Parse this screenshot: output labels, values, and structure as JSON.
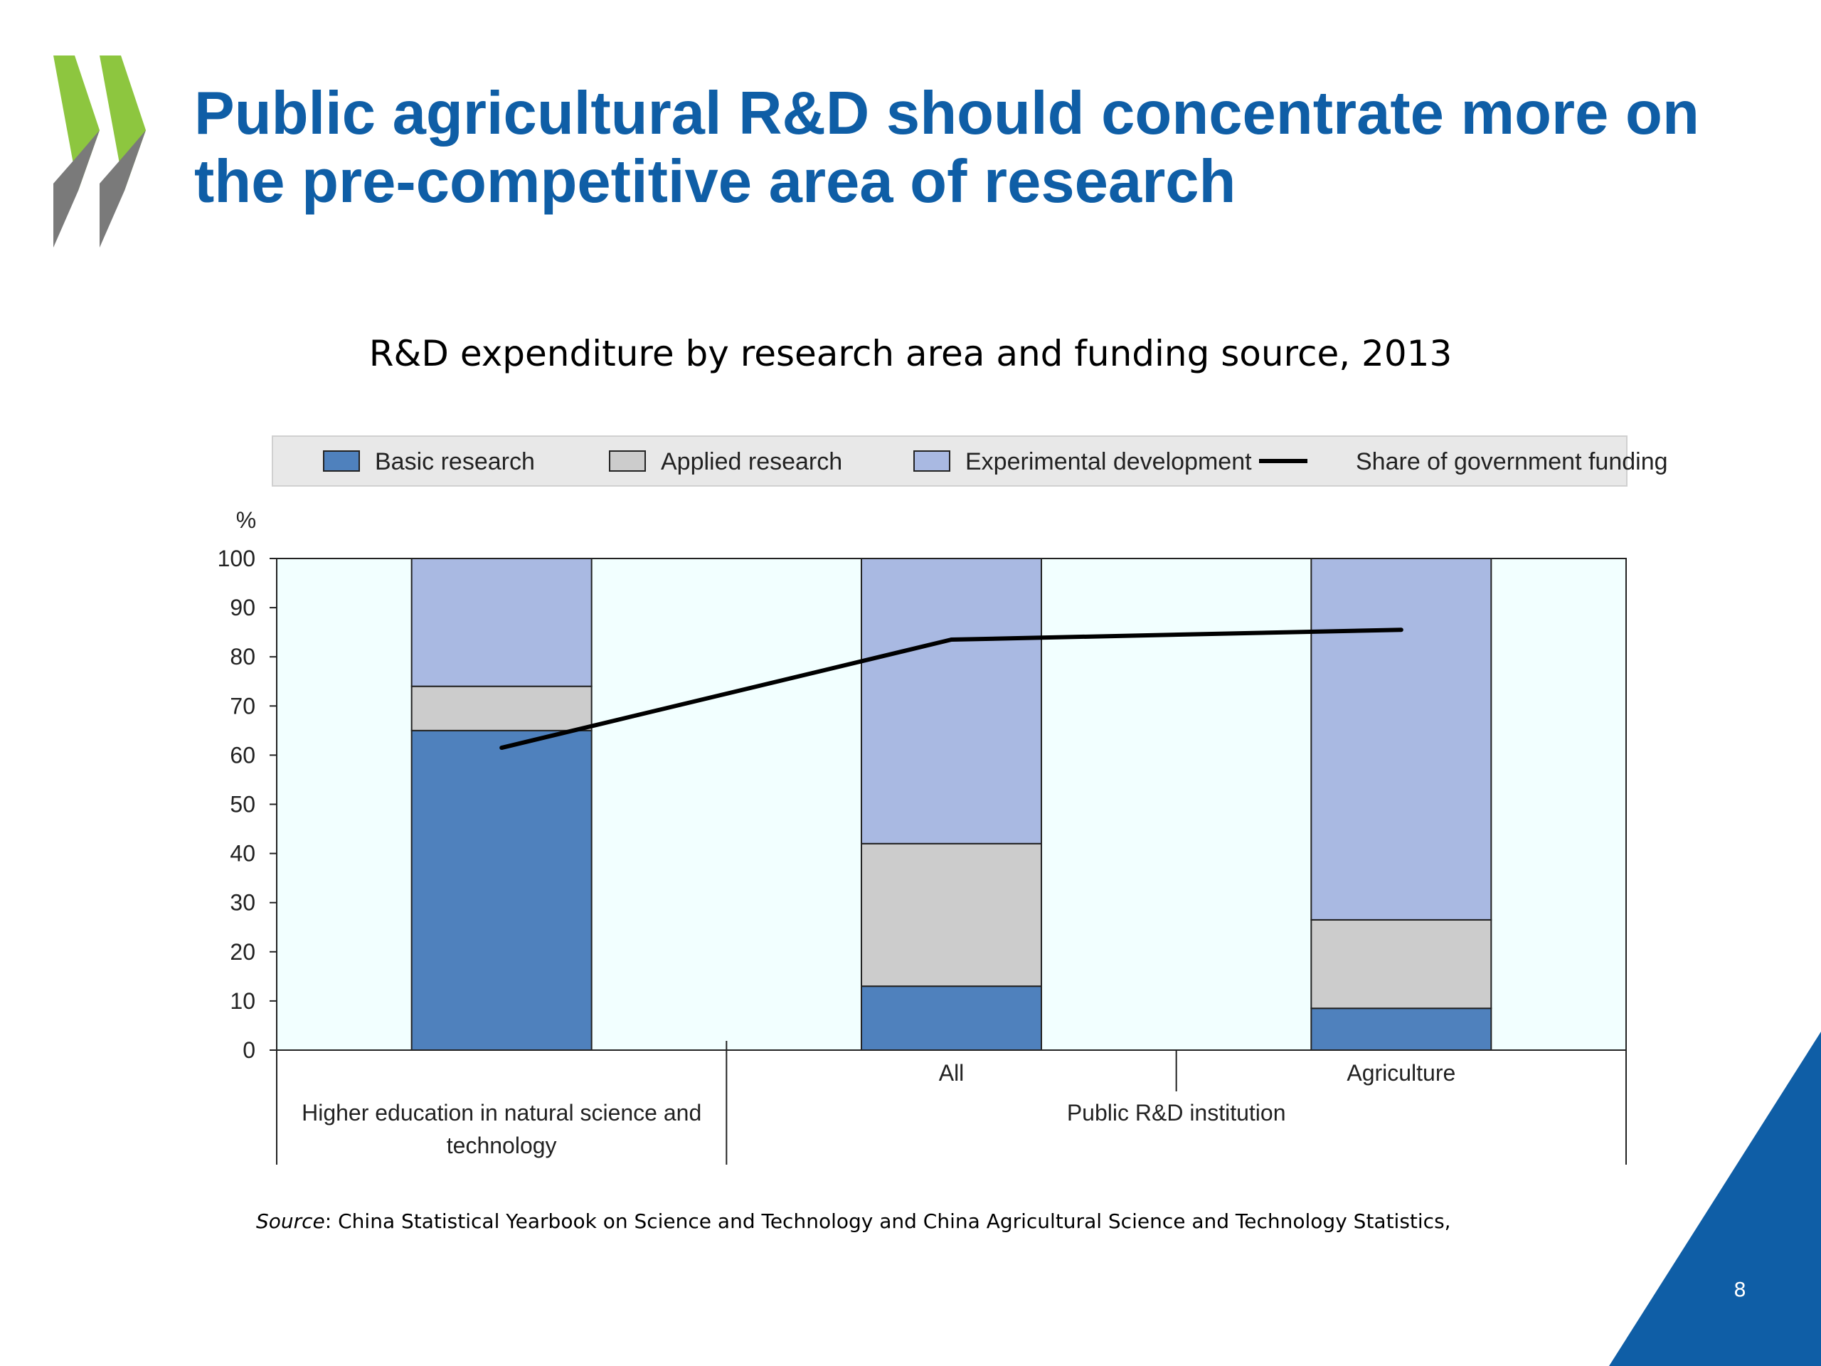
{
  "slide": {
    "title": "Public agricultural R&D should concentrate more on the pre-competitive area of research",
    "page_number": "8",
    "source_label": "Source",
    "source_text": ": China Statistical Yearbook on Science and Technology and China Agricultural Science and Technology Statistics,",
    "colors": {
      "title": "#0f5ea6",
      "corner": "#0f5ea6",
      "logo_green": "#8dc63f",
      "logo_grey": "#7a7a7a"
    }
  },
  "chart_data": {
    "type": "bar",
    "stacked": true,
    "title": "R&D expenditure by research area and funding source, 2013",
    "ylabel": "%",
    "ylim": [
      0,
      100
    ],
    "yticks": [
      "0",
      "10",
      "20",
      "30",
      "40",
      "50",
      "60",
      "70",
      "80",
      "90",
      "100"
    ],
    "categories": [
      "Higher education in natural science and technology",
      "All",
      "Agriculture"
    ],
    "groups": [
      {
        "label": "Higher education in natural science and technology",
        "categories": [
          "Higher education in natural science and technology"
        ]
      },
      {
        "label": "Public R&D institution",
        "categories": [
          "All",
          "Agriculture"
        ]
      }
    ],
    "series": [
      {
        "name": "Basic research",
        "type": "bar",
        "color": "#4f81bd",
        "values": [
          65,
          13,
          8.5
        ]
      },
      {
        "name": "Applied research",
        "type": "bar",
        "color": "#cccccc",
        "values": [
          9,
          29,
          18
        ]
      },
      {
        "name": "Experimental development",
        "type": "bar",
        "color": "#a9b9e2",
        "values": [
          26,
          58,
          73.5
        ]
      },
      {
        "name": "Share of government funding",
        "type": "line",
        "color": "#000000",
        "values": [
          61.5,
          83.5,
          85.5
        ]
      }
    ],
    "plot_background": "#f2ffff",
    "legend_position": "top",
    "grid": false
  }
}
